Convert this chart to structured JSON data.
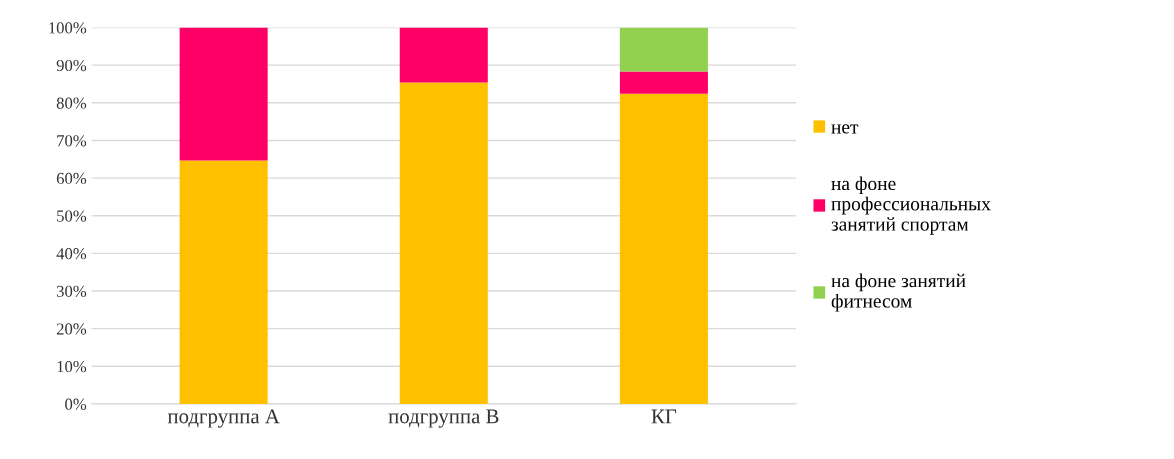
{
  "chart_data": {
    "type": "bar",
    "stacked": true,
    "categories": [
      "подгруппа А",
      "подгруппа В",
      "КГ"
    ],
    "series": [
      {
        "name": "нет",
        "color": "#ffc000",
        "values": [
          64.7,
          85.4,
          82.4
        ]
      },
      {
        "name": "на фоне\nпрофессиональных\nзанятий спортам",
        "color": "#ff0066",
        "values": [
          35.3,
          14.6,
          5.9
        ]
      },
      {
        "name": "на фоне занятий\nфитнесом",
        "color": "#92d050",
        "values": [
          0,
          0,
          11.7
        ]
      }
    ],
    "ylim": [
      0,
      100
    ],
    "yticks": [
      {
        "value": 0,
        "label": "0%"
      },
      {
        "value": 10,
        "label": "10%"
      },
      {
        "value": 20,
        "label": "20%"
      },
      {
        "value": 30,
        "label": "30%"
      },
      {
        "value": 40,
        "label": "40%"
      },
      {
        "value": 50,
        "label": "50%"
      },
      {
        "value": 60,
        "label": "60%"
      },
      {
        "value": 70,
        "label": "70%"
      },
      {
        "value": 80,
        "label": "80%"
      },
      {
        "value": 90,
        "label": "90%"
      },
      {
        "value": 100,
        "label": "100%"
      }
    ],
    "grid": "y",
    "legend": "right"
  }
}
